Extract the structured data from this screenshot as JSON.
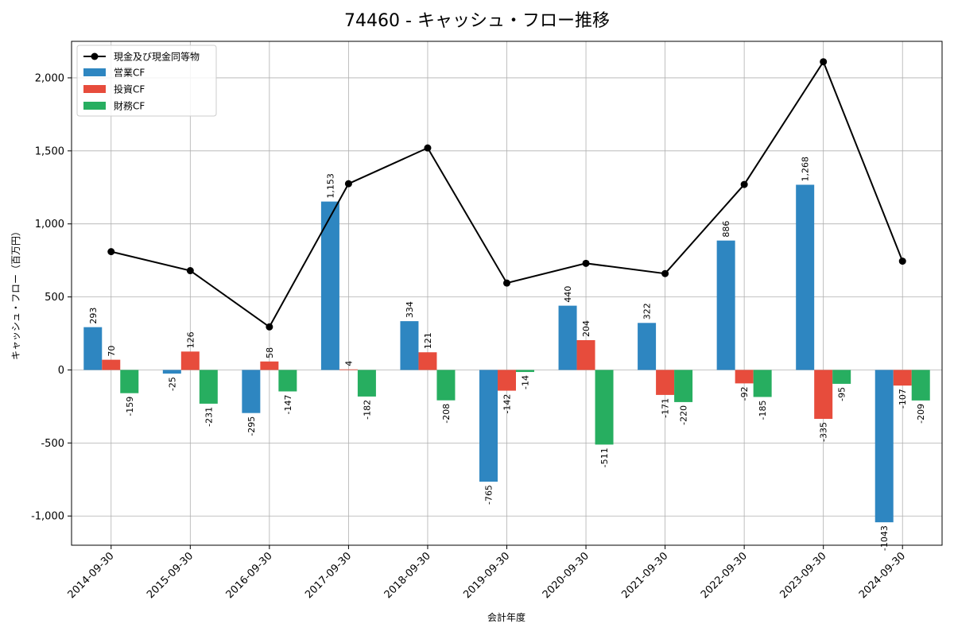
{
  "chart_data": {
    "type": "bar",
    "title": "74460 - キャッシュ・フロー推移",
    "xlabel": "会計年度",
    "ylabel": "キャッシュ・フロー（百万円）",
    "categories": [
      "2014-09-30",
      "2015-09-30",
      "2016-09-30",
      "2017-09-30",
      "2018-09-30",
      "2019-09-30",
      "2020-09-30",
      "2021-09-30",
      "2022-09-30",
      "2023-09-30",
      "2024-09-30"
    ],
    "ylim": [
      -1200,
      2250
    ],
    "yticks": [
      -1000,
      -500,
      0,
      500,
      1000,
      1500,
      2000
    ],
    "ytick_labels": [
      "-1,000",
      "-500",
      "0",
      "500",
      "1,000",
      "1,500",
      "2,000"
    ],
    "grid": true,
    "legend_position": "top-left",
    "series": [
      {
        "name": "営業CF",
        "kind": "bar",
        "color": "#2e86c1",
        "values": [
          293,
          -25,
          -295,
          1153,
          334,
          -765,
          440,
          322,
          886,
          1268,
          -1043
        ],
        "labels": [
          "293",
          "-25",
          "-295",
          "1,153",
          "334",
          "-765",
          "440",
          "322",
          "886",
          "1,268",
          "-1043"
        ]
      },
      {
        "name": "投資CF",
        "kind": "bar",
        "color": "#e74c3c",
        "values": [
          70,
          126,
          58,
          4,
          121,
          -142,
          204,
          -171,
          -92,
          -335,
          -107
        ],
        "labels": [
          "70",
          "126",
          "58",
          "4",
          "121",
          "-142",
          "204",
          "-171",
          "-92",
          "-335",
          "-107"
        ]
      },
      {
        "name": "財務CF",
        "kind": "bar",
        "color": "#27ae60",
        "values": [
          -159,
          -231,
          -147,
          -182,
          -208,
          -14,
          -511,
          -220,
          -185,
          -95,
          -209
        ],
        "labels": [
          "-159",
          "-231",
          "-147",
          "-182",
          "-208",
          "-14",
          "-511",
          "-220",
          "-185",
          "-95",
          "-209"
        ]
      }
    ],
    "line_series": {
      "name": "現金及び現金同等物",
      "kind": "line",
      "color": "#000000",
      "values": [
        810,
        680,
        295,
        1275,
        1520,
        595,
        730,
        660,
        1270,
        2110,
        745
      ]
    }
  }
}
